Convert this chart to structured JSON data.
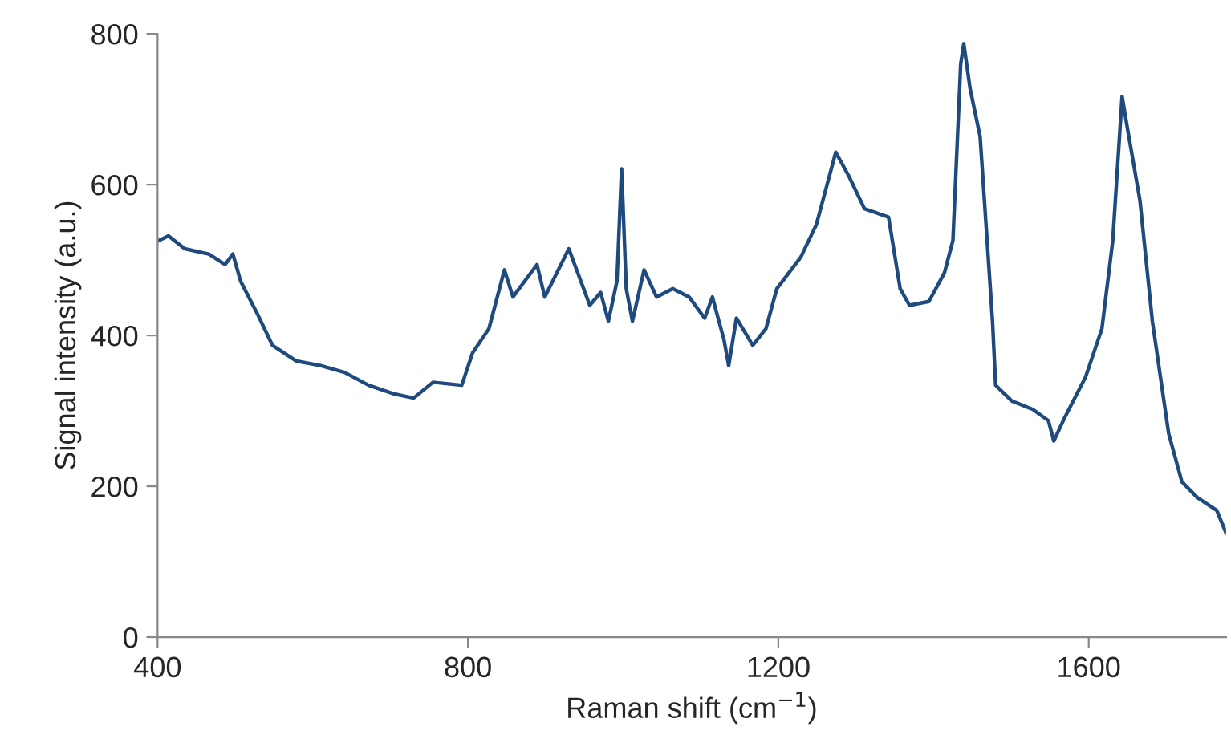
{
  "chart_data": {
    "type": "line",
    "xlabel": "Raman shift (cm$^{−1}$)",
    "ylabel": "Signal intensity (a.u.)",
    "xlim": [
      400,
      1777
    ],
    "ylim": [
      0,
      800
    ],
    "xticks": [
      400,
      800,
      1200,
      1600
    ],
    "yticks": [
      0,
      200,
      400,
      600,
      800
    ],
    "grid": false,
    "series": [
      {
        "color": "#1f4a7e",
        "x": [
          400,
          414,
          435,
          466,
          487,
          497,
          507,
          528,
          548,
          579,
          610,
          641,
          672,
          703,
          730,
          755,
          792,
          806,
          827,
          847,
          858,
          889,
          899,
          930,
          957,
          971,
          981,
          992,
          998,
          1004,
          1012,
          1027,
          1043,
          1064,
          1085,
          1105,
          1115,
          1130,
          1136,
          1146,
          1167,
          1184,
          1198,
          1229,
          1249,
          1274,
          1291,
          1311,
          1342,
          1357,
          1369,
          1394,
          1414,
          1425,
          1435,
          1439,
          1447,
          1460,
          1476,
          1480,
          1501,
          1528,
          1548,
          1555,
          1569,
          1596,
          1617,
          1631,
          1643,
          1650,
          1666,
          1682,
          1703,
          1720,
          1740,
          1765,
          1777
        ],
        "values": [
          525,
          532,
          515,
          508,
          494,
          508,
          472,
          430,
          387,
          366,
          360,
          351,
          334,
          323,
          317,
          338,
          334,
          377,
          409,
          487,
          451,
          494,
          451,
          515,
          440,
          457,
          419,
          472,
          621,
          462,
          419,
          487,
          451,
          462,
          451,
          423,
          451,
          394,
          360,
          423,
          387,
          409,
          462,
          504,
          547,
          643,
          611,
          568,
          557,
          462,
          440,
          445,
          483,
          526,
          760,
          787,
          728,
          664,
          419,
          334,
          313,
          302,
          287,
          260,
          291,
          345,
          409,
          526,
          717,
          674,
          579,
          419,
          270,
          206,
          185,
          168,
          138
        ]
      }
    ]
  }
}
